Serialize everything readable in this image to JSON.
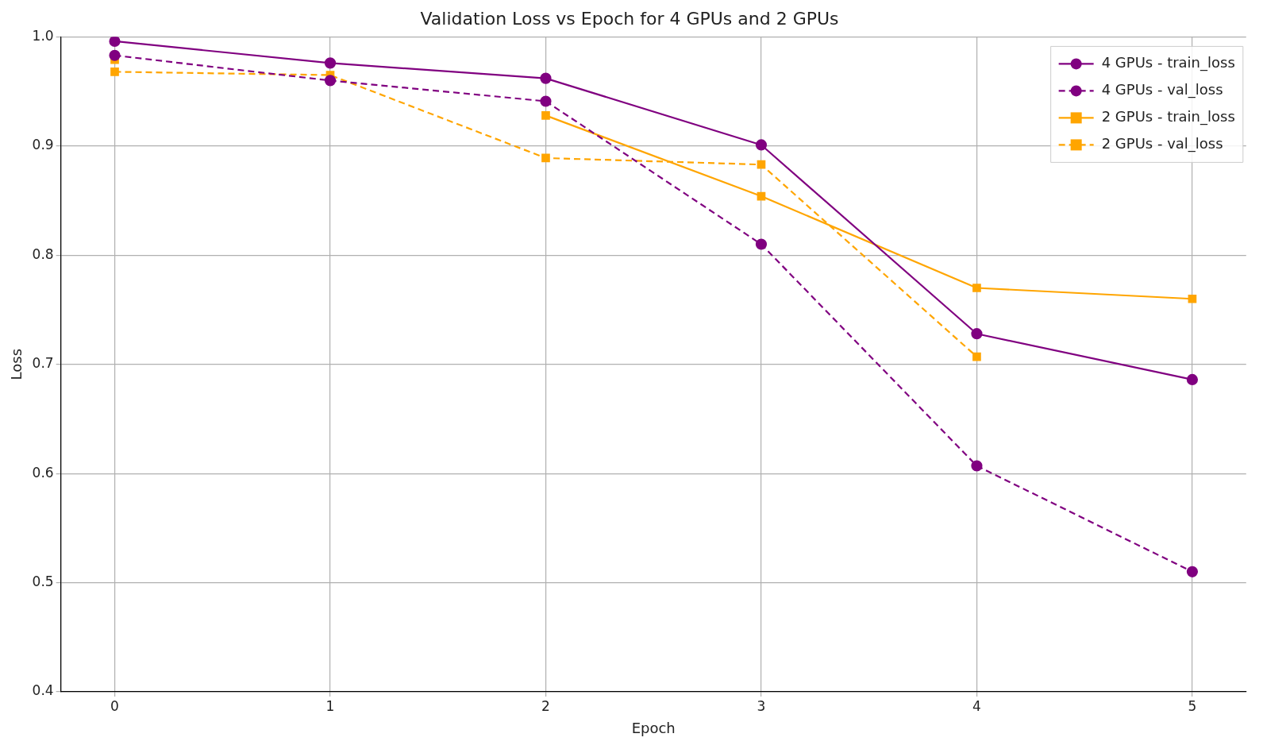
{
  "chart_data": {
    "type": "line",
    "title": "Validation Loss vs Epoch for 4 GPUs and 2 GPUs",
    "xlabel": "Epoch",
    "ylabel": "Loss",
    "x": [
      0,
      1,
      2,
      3,
      4,
      5
    ],
    "series": [
      {
        "name": "4 GPUs - train_loss",
        "color": "#800080",
        "marker": "circle",
        "line_style": "solid",
        "values": [
          0.996,
          0.976,
          0.962,
          0.901,
          0.728,
          0.686
        ]
      },
      {
        "name": "4 GPUs - val_loss",
        "color": "#800080",
        "marker": "circle",
        "line_style": "dashed",
        "values": [
          0.983,
          0.96,
          0.941,
          0.81,
          0.607,
          0.51
        ]
      },
      {
        "name": "2 GPUs - train_loss",
        "color": "#ffa500",
        "marker": "square",
        "line_style": "solid",
        "values": [
          0.979,
          null,
          0.928,
          0.854,
          0.77,
          0.76
        ]
      },
      {
        "name": "2 GPUs - val_loss",
        "color": "#ffa500",
        "marker": "square",
        "line_style": "dashed",
        "values": [
          0.968,
          0.965,
          0.889,
          0.883,
          0.707,
          null
        ]
      }
    ],
    "xlim": [
      -0.25,
      5.25
    ],
    "xticks": [
      0,
      1,
      2,
      3,
      4,
      5
    ],
    "ylim": [
      0.4,
      1.0
    ],
    "yticks": [
      {
        "value": 0.4,
        "label": "0.4"
      },
      {
        "value": 0.5,
        "label": "0.5"
      },
      {
        "value": 0.6,
        "label": "0.6"
      },
      {
        "value": 0.7,
        "label": "0.7"
      },
      {
        "value": 0.8,
        "label": "0.8"
      },
      {
        "value": 0.9,
        "label": "0.9"
      },
      {
        "value": 1.0,
        "label": "1.0"
      }
    ],
    "grid": true,
    "legend": "top right"
  }
}
